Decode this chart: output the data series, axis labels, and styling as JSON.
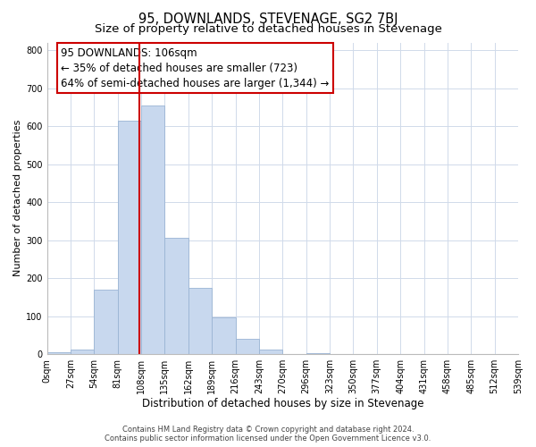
{
  "title": "95, DOWNLANDS, STEVENAGE, SG2 7BJ",
  "subtitle": "Size of property relative to detached houses in Stevenage",
  "xlabel": "Distribution of detached houses by size in Stevenage",
  "ylabel": "Number of detached properties",
  "bin_edges": [
    0,
    27,
    54,
    81,
    108,
    135,
    162,
    189,
    216,
    243,
    270,
    297,
    324,
    351,
    378,
    405,
    432,
    459,
    486,
    513,
    540
  ],
  "bin_counts": [
    5,
    12,
    170,
    615,
    655,
    305,
    175,
    97,
    40,
    12,
    0,
    3,
    0,
    0,
    0,
    0,
    0,
    0,
    0,
    0
  ],
  "bar_facecolor": "#c8d8ee",
  "bar_edgecolor": "#9ab4d4",
  "vline_x": 106,
  "vline_color": "#cc0000",
  "annotation_line1": "95 DOWNLANDS: 106sqm",
  "annotation_line2": "← 35% of detached houses are smaller (723)",
  "annotation_line3": "64% of semi-detached houses are larger (1,344) →",
  "ylim": [
    0,
    820
  ],
  "yticks": [
    0,
    100,
    200,
    300,
    400,
    500,
    600,
    700,
    800
  ],
  "xtick_labels": [
    "0sqm",
    "27sqm",
    "54sqm",
    "81sqm",
    "108sqm",
    "135sqm",
    "162sqm",
    "189sqm",
    "216sqm",
    "243sqm",
    "270sqm",
    "296sqm",
    "323sqm",
    "350sqm",
    "377sqm",
    "404sqm",
    "431sqm",
    "458sqm",
    "485sqm",
    "512sqm",
    "539sqm"
  ],
  "grid_color": "#d0daea",
  "background_color": "#ffffff",
  "footer_line1": "Contains HM Land Registry data © Crown copyright and database right 2024.",
  "footer_line2": "Contains public sector information licensed under the Open Government Licence v3.0.",
  "title_fontsize": 10.5,
  "subtitle_fontsize": 9.5,
  "xlabel_fontsize": 8.5,
  "ylabel_fontsize": 8,
  "tick_fontsize": 7,
  "annotation_fontsize": 8.5,
  "footer_fontsize": 6
}
